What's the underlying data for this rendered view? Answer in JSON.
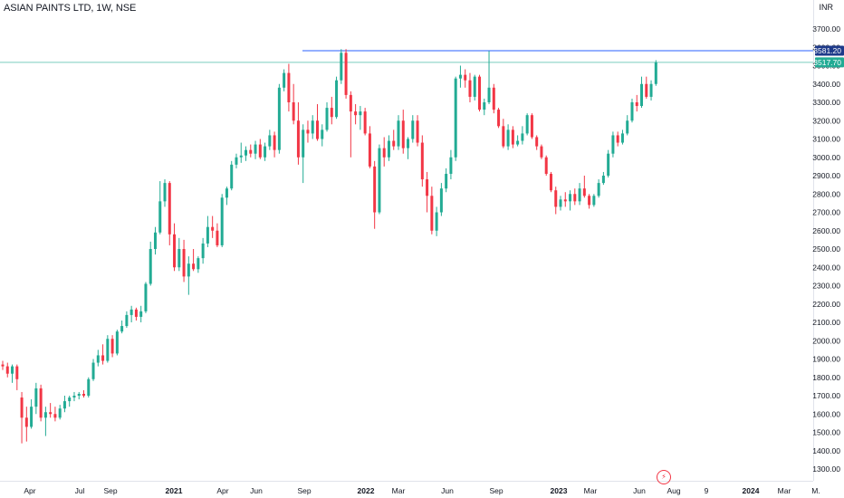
{
  "symbol": "ASIAN PAINTS LTD, 1W, NSE",
  "currency": "INR",
  "colors": {
    "up": "#22ab94",
    "down": "#f23645",
    "resistance_line": "#2962ff",
    "last_line": "#22ab94",
    "axis_text": "#131722"
  },
  "chart_data": {
    "type": "candlestick",
    "timeframe": "1W",
    "y_ticks": [
      1300,
      1400,
      1500,
      1600,
      1700,
      1800,
      1900,
      2000,
      2100,
      2200,
      2300,
      2400,
      2500,
      2600,
      2700,
      2800,
      2900,
      3000,
      3100,
      3200,
      3300,
      3400,
      3500,
      3600,
      3700
    ],
    "x_ticks": [
      "Apr",
      "Jul",
      "Sep",
      "2021",
      "Apr",
      "Jun",
      "Sep",
      "2022",
      "Mar",
      "Jun",
      "Sep",
      "2023",
      "Mar",
      "Jun",
      "Aug",
      "9",
      "2024",
      "Mar",
      "M."
    ],
    "price_labels": [
      {
        "value": 3581.2,
        "label": "3581.20",
        "kind": "resistance"
      },
      {
        "value": 3517.7,
        "label": "3517.70",
        "kind": "last"
      }
    ],
    "candles": [
      {
        "o": 1870,
        "h": 1890,
        "l": 1840,
        "c": 1860
      },
      {
        "o": 1860,
        "h": 1880,
        "l": 1800,
        "c": 1820
      },
      {
        "o": 1820,
        "h": 1870,
        "l": 1770,
        "c": 1860
      },
      {
        "o": 1860,
        "h": 1870,
        "l": 1730,
        "c": 1790
      },
      {
        "o": 1690,
        "h": 1720,
        "l": 1440,
        "c": 1580
      },
      {
        "o": 1580,
        "h": 1640,
        "l": 1450,
        "c": 1530
      },
      {
        "o": 1530,
        "h": 1680,
        "l": 1520,
        "c": 1640
      },
      {
        "o": 1640,
        "h": 1770,
        "l": 1600,
        "c": 1740
      },
      {
        "o": 1740,
        "h": 1760,
        "l": 1560,
        "c": 1580
      },
      {
        "o": 1580,
        "h": 1640,
        "l": 1480,
        "c": 1610
      },
      {
        "o": 1610,
        "h": 1660,
        "l": 1580,
        "c": 1600
      },
      {
        "o": 1600,
        "h": 1640,
        "l": 1560,
        "c": 1580
      },
      {
        "o": 1580,
        "h": 1650,
        "l": 1570,
        "c": 1630
      },
      {
        "o": 1630,
        "h": 1700,
        "l": 1610,
        "c": 1670
      },
      {
        "o": 1670,
        "h": 1700,
        "l": 1640,
        "c": 1690
      },
      {
        "o": 1690,
        "h": 1720,
        "l": 1670,
        "c": 1700
      },
      {
        "o": 1700,
        "h": 1720,
        "l": 1680,
        "c": 1710
      },
      {
        "o": 1710,
        "h": 1730,
        "l": 1690,
        "c": 1700
      },
      {
        "o": 1700,
        "h": 1800,
        "l": 1690,
        "c": 1790
      },
      {
        "o": 1790,
        "h": 1900,
        "l": 1780,
        "c": 1880
      },
      {
        "o": 1880,
        "h": 1950,
        "l": 1860,
        "c": 1920
      },
      {
        "o": 1920,
        "h": 1980,
        "l": 1870,
        "c": 1890
      },
      {
        "o": 1890,
        "h": 2030,
        "l": 1880,
        "c": 2010
      },
      {
        "o": 2010,
        "h": 2030,
        "l": 1910,
        "c": 1930
      },
      {
        "o": 1930,
        "h": 2060,
        "l": 1920,
        "c": 2050
      },
      {
        "o": 2050,
        "h": 2110,
        "l": 2040,
        "c": 2080
      },
      {
        "o": 2080,
        "h": 2160,
        "l": 2070,
        "c": 2140
      },
      {
        "o": 2140,
        "h": 2190,
        "l": 2100,
        "c": 2170
      },
      {
        "o": 2170,
        "h": 2180,
        "l": 2110,
        "c": 2130
      },
      {
        "o": 2130,
        "h": 2190,
        "l": 2100,
        "c": 2160
      },
      {
        "o": 2160,
        "h": 2320,
        "l": 2150,
        "c": 2310
      },
      {
        "o": 2310,
        "h": 2540,
        "l": 2300,
        "c": 2500
      },
      {
        "o": 2500,
        "h": 2620,
        "l": 2470,
        "c": 2590
      },
      {
        "o": 2590,
        "h": 2870,
        "l": 2580,
        "c": 2760
      },
      {
        "o": 2760,
        "h": 2880,
        "l": 2730,
        "c": 2860
      },
      {
        "o": 2860,
        "h": 2870,
        "l": 2520,
        "c": 2580
      },
      {
        "o": 2580,
        "h": 2640,
        "l": 2380,
        "c": 2400
      },
      {
        "o": 2400,
        "h": 2560,
        "l": 2380,
        "c": 2500
      },
      {
        "o": 2500,
        "h": 2550,
        "l": 2320,
        "c": 2350
      },
      {
        "o": 2350,
        "h": 2460,
        "l": 2250,
        "c": 2420
      },
      {
        "o": 2420,
        "h": 2500,
        "l": 2380,
        "c": 2390
      },
      {
        "o": 2390,
        "h": 2460,
        "l": 2370,
        "c": 2450
      },
      {
        "o": 2450,
        "h": 2560,
        "l": 2420,
        "c": 2530
      },
      {
        "o": 2530,
        "h": 2680,
        "l": 2510,
        "c": 2620
      },
      {
        "o": 2620,
        "h": 2680,
        "l": 2560,
        "c": 2600
      },
      {
        "o": 2600,
        "h": 2640,
        "l": 2510,
        "c": 2520
      },
      {
        "o": 2520,
        "h": 2800,
        "l": 2510,
        "c": 2780
      },
      {
        "o": 2780,
        "h": 2840,
        "l": 2740,
        "c": 2830
      },
      {
        "o": 2830,
        "h": 2980,
        "l": 2820,
        "c": 2960
      },
      {
        "o": 2960,
        "h": 3020,
        "l": 2940,
        "c": 3000
      },
      {
        "o": 3000,
        "h": 3080,
        "l": 2970,
        "c": 3010
      },
      {
        "o": 3010,
        "h": 3060,
        "l": 2980,
        "c": 3040
      },
      {
        "o": 3040,
        "h": 3070,
        "l": 3000,
        "c": 3020
      },
      {
        "o": 3020,
        "h": 3090,
        "l": 2990,
        "c": 3070
      },
      {
        "o": 3070,
        "h": 3100,
        "l": 2990,
        "c": 3000
      },
      {
        "o": 3000,
        "h": 3080,
        "l": 2980,
        "c": 3060
      },
      {
        "o": 3060,
        "h": 3150,
        "l": 3040,
        "c": 3120
      },
      {
        "o": 3120,
        "h": 3140,
        "l": 3000,
        "c": 3040
      },
      {
        "o": 3040,
        "h": 3400,
        "l": 3020,
        "c": 3380
      },
      {
        "o": 3380,
        "h": 3480,
        "l": 3360,
        "c": 3460
      },
      {
        "o": 3460,
        "h": 3510,
        "l": 3250,
        "c": 3300
      },
      {
        "o": 3300,
        "h": 3400,
        "l": 3180,
        "c": 3200
      },
      {
        "o": 3200,
        "h": 3300,
        "l": 2960,
        "c": 3000
      },
      {
        "o": 3000,
        "h": 3180,
        "l": 2860,
        "c": 3150
      },
      {
        "o": 3150,
        "h": 3200,
        "l": 3080,
        "c": 3130
      },
      {
        "o": 3130,
        "h": 3230,
        "l": 3100,
        "c": 3200
      },
      {
        "o": 3200,
        "h": 3290,
        "l": 3090,
        "c": 3100
      },
      {
        "o": 3100,
        "h": 3180,
        "l": 3060,
        "c": 3150
      },
      {
        "o": 3150,
        "h": 3300,
        "l": 3140,
        "c": 3270
      },
      {
        "o": 3270,
        "h": 3330,
        "l": 3180,
        "c": 3220
      },
      {
        "o": 3220,
        "h": 3440,
        "l": 3210,
        "c": 3420
      },
      {
        "o": 3420,
        "h": 3590,
        "l": 3400,
        "c": 3570
      },
      {
        "o": 3570,
        "h": 3590,
        "l": 3320,
        "c": 3340
      },
      {
        "o": 3340,
        "h": 3360,
        "l": 3000,
        "c": 3250
      },
      {
        "o": 3250,
        "h": 3290,
        "l": 3180,
        "c": 3230
      },
      {
        "o": 3230,
        "h": 3280,
        "l": 3150,
        "c": 3250
      },
      {
        "o": 3250,
        "h": 3270,
        "l": 3120,
        "c": 3130
      },
      {
        "o": 3130,
        "h": 3170,
        "l": 2940,
        "c": 2950
      },
      {
        "o": 2950,
        "h": 2980,
        "l": 2610,
        "c": 2700
      },
      {
        "o": 2700,
        "h": 3070,
        "l": 2690,
        "c": 3050
      },
      {
        "o": 3050,
        "h": 3110,
        "l": 2950,
        "c": 3000
      },
      {
        "o": 3000,
        "h": 3120,
        "l": 2980,
        "c": 3090
      },
      {
        "o": 3090,
        "h": 3150,
        "l": 3040,
        "c": 3060
      },
      {
        "o": 3060,
        "h": 3230,
        "l": 3040,
        "c": 3200
      },
      {
        "o": 3200,
        "h": 3260,
        "l": 3020,
        "c": 3050
      },
      {
        "o": 3050,
        "h": 3110,
        "l": 2990,
        "c": 3100
      },
      {
        "o": 3100,
        "h": 3230,
        "l": 3080,
        "c": 3200
      },
      {
        "o": 3200,
        "h": 3230,
        "l": 3060,
        "c": 3080
      },
      {
        "o": 3080,
        "h": 3120,
        "l": 2840,
        "c": 2880
      },
      {
        "o": 2880,
        "h": 2920,
        "l": 2700,
        "c": 2790
      },
      {
        "o": 2790,
        "h": 2840,
        "l": 2580,
        "c": 2600
      },
      {
        "o": 2600,
        "h": 2730,
        "l": 2570,
        "c": 2700
      },
      {
        "o": 2700,
        "h": 2860,
        "l": 2680,
        "c": 2830
      },
      {
        "o": 2830,
        "h": 2940,
        "l": 2810,
        "c": 2910
      },
      {
        "o": 2910,
        "h": 3040,
        "l": 2880,
        "c": 3000
      },
      {
        "o": 3000,
        "h": 3440,
        "l": 2980,
        "c": 3430
      },
      {
        "o": 3430,
        "h": 3500,
        "l": 3380,
        "c": 3450
      },
      {
        "o": 3450,
        "h": 3480,
        "l": 3380,
        "c": 3420
      },
      {
        "o": 3420,
        "h": 3460,
        "l": 3300,
        "c": 3330
      },
      {
        "o": 3330,
        "h": 3450,
        "l": 3310,
        "c": 3440
      },
      {
        "o": 3440,
        "h": 3450,
        "l": 3250,
        "c": 3260
      },
      {
        "o": 3260,
        "h": 3320,
        "l": 3230,
        "c": 3300
      },
      {
        "o": 3300,
        "h": 3580,
        "l": 3290,
        "c": 3380
      },
      {
        "o": 3380,
        "h": 3400,
        "l": 3240,
        "c": 3260
      },
      {
        "o": 3260,
        "h": 3270,
        "l": 3160,
        "c": 3170
      },
      {
        "o": 3170,
        "h": 3210,
        "l": 3050,
        "c": 3060
      },
      {
        "o": 3060,
        "h": 3180,
        "l": 3040,
        "c": 3150
      },
      {
        "o": 3150,
        "h": 3170,
        "l": 3050,
        "c": 3070
      },
      {
        "o": 3070,
        "h": 3120,
        "l": 3060,
        "c": 3090
      },
      {
        "o": 3090,
        "h": 3170,
        "l": 3070,
        "c": 3130
      },
      {
        "o": 3130,
        "h": 3240,
        "l": 3120,
        "c": 3230
      },
      {
        "o": 3230,
        "h": 3240,
        "l": 3100,
        "c": 3110
      },
      {
        "o": 3110,
        "h": 3120,
        "l": 3040,
        "c": 3060
      },
      {
        "o": 3060,
        "h": 3070,
        "l": 2990,
        "c": 3000
      },
      {
        "o": 3000,
        "h": 3010,
        "l": 2900,
        "c": 2910
      },
      {
        "o": 2910,
        "h": 2920,
        "l": 2810,
        "c": 2820
      },
      {
        "o": 2820,
        "h": 2840,
        "l": 2690,
        "c": 2730
      },
      {
        "o": 2730,
        "h": 2790,
        "l": 2710,
        "c": 2770
      },
      {
        "o": 2770,
        "h": 2810,
        "l": 2730,
        "c": 2760
      },
      {
        "o": 2760,
        "h": 2820,
        "l": 2710,
        "c": 2800
      },
      {
        "o": 2800,
        "h": 2830,
        "l": 2740,
        "c": 2760
      },
      {
        "o": 2760,
        "h": 2860,
        "l": 2740,
        "c": 2830
      },
      {
        "o": 2830,
        "h": 2900,
        "l": 2780,
        "c": 2790
      },
      {
        "o": 2790,
        "h": 2800,
        "l": 2720,
        "c": 2740
      },
      {
        "o": 2740,
        "h": 2800,
        "l": 2730,
        "c": 2790
      },
      {
        "o": 2790,
        "h": 2880,
        "l": 2780,
        "c": 2860
      },
      {
        "o": 2860,
        "h": 2920,
        "l": 2850,
        "c": 2900
      },
      {
        "o": 2900,
        "h": 3040,
        "l": 2890,
        "c": 3020
      },
      {
        "o": 3020,
        "h": 3140,
        "l": 3000,
        "c": 3120
      },
      {
        "o": 3120,
        "h": 3140,
        "l": 3060,
        "c": 3080
      },
      {
        "o": 3080,
        "h": 3150,
        "l": 3070,
        "c": 3130
      },
      {
        "o": 3130,
        "h": 3230,
        "l": 3120,
        "c": 3200
      },
      {
        "o": 3200,
        "h": 3320,
        "l": 3190,
        "c": 3300
      },
      {
        "o": 3300,
        "h": 3340,
        "l": 3250,
        "c": 3280
      },
      {
        "o": 3280,
        "h": 3440,
        "l": 3270,
        "c": 3400
      },
      {
        "o": 3400,
        "h": 3440,
        "l": 3320,
        "c": 3330
      },
      {
        "o": 3330,
        "h": 3420,
        "l": 3310,
        "c": 3400
      },
      {
        "o": 3400,
        "h": 3530,
        "l": 3390,
        "c": 3517.7
      }
    ]
  }
}
